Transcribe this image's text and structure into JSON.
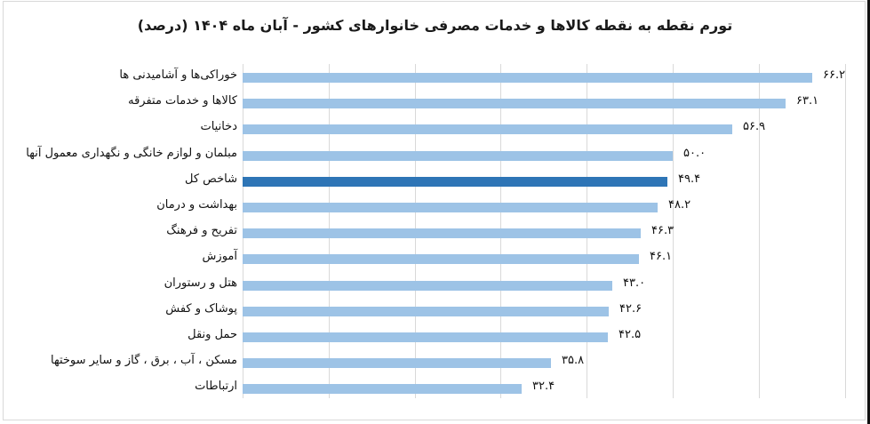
{
  "chart_data": {
    "type": "bar",
    "orientation": "horizontal",
    "title": "تورم نقطه به نقطه کالاها و خدمات مصرفی خانوارهای کشور - آبان ماه ۱۴۰۴ (درصد)",
    "xlabel": "",
    "ylabel": "",
    "xlim": [
      0,
      70
    ],
    "grid": true,
    "grid_step": 10,
    "legend": null,
    "colors": {
      "default": "#9dc3e6",
      "highlight": "#2e75b6"
    },
    "highlight_category": "شاخص کل",
    "categories": [
      "خوراکی‌ها و آشامیدنی ها",
      "کالاها و خدمات متفرقه",
      "دخانیات",
      "مبلمان و لوازم خانگی و نگهداری معمول آنها",
      "شاخص کل",
      "بهداشت و درمان",
      "تفریح و فرهنگ",
      "آموزش",
      "هتل و رستوران",
      "پوشاک و کفش",
      "حمل ونقل",
      "مسکن ، آب ، برق ، گاز و سایر سوختها",
      "ارتباطات"
    ],
    "values": [
      66.2,
      63.1,
      56.9,
      50.0,
      49.4,
      48.2,
      46.3,
      46.1,
      43.0,
      42.6,
      42.5,
      35.8,
      32.4
    ],
    "value_labels": [
      "۶۶.۲",
      "۶۳.۱",
      "۵۶.۹",
      "۵۰.۰",
      "۴۹.۴",
      "۴۸.۲",
      "۴۶.۳",
      "۴۶.۱",
      "۴۳.۰",
      "۴۲.۶",
      "۴۲.۵",
      "۳۵.۸",
      "۳۲.۴"
    ]
  }
}
